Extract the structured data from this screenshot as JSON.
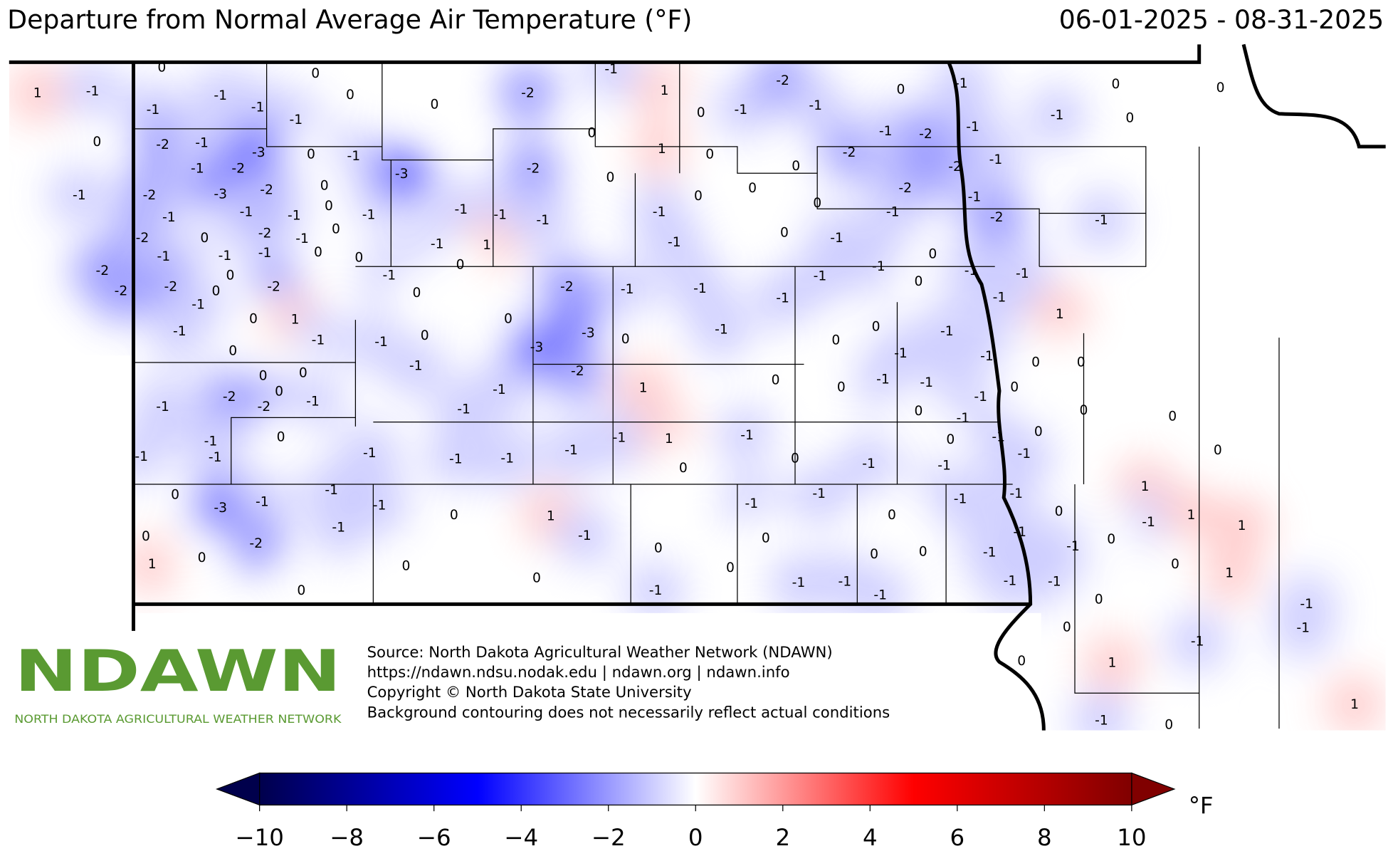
{
  "title": "Departure from Normal Average Air Temperature ($^\\circ$F)",
  "date_range": "06-01-2025 - 08-31-2025",
  "source_lines": [
    "Source: North Dakota Agricultural Weather Network (NDAWN)",
    "https://ndawn.ndsu.nodak.edu | ndawn.org | ndawn.info",
    "Copyright © North Dakota State University",
    "Background contouring does not necessarily reflect actual conditions"
  ],
  "logo": {
    "name": "NDAWN",
    "tagline": "NORTH DAKOTA AGRICULTURAL WEATHER NETWORK"
  },
  "station_values": [
    1,
    -1,
    0,
    0,
    -1,
    -1,
    -1,
    0,
    -1,
    0,
    0,
    -2,
    -1,
    1,
    0,
    -1,
    -2,
    -1,
    0,
    -1,
    0,
    -1,
    0,
    0,
    -2,
    -1,
    -1,
    -2,
    -3,
    0,
    -1,
    -3,
    0,
    -2,
    -3,
    -2,
    -1,
    0,
    1,
    0,
    -2,
    0,
    0,
    0,
    -2,
    -1,
    -2,
    -1,
    -2,
    -1,
    -2,
    -1,
    -1,
    -1,
    -1,
    0,
    -1,
    -1,
    -1,
    -1,
    0,
    -1,
    0,
    -1,
    -2,
    -1,
    -2,
    0,
    -2,
    -1,
    0,
    -1,
    -1,
    -1,
    0,
    0,
    -1,
    1,
    0,
    -1,
    0,
    -1,
    -2,
    -2,
    -2,
    0,
    0,
    -2,
    -1,
    -1,
    0,
    -2,
    -1,
    -1,
    -1,
    -1,
    -1,
    0,
    0,
    -1,
    -1,
    -1,
    -1,
    0,
    1,
    -1,
    0,
    -1,
    0,
    0,
    -3,
    -3,
    0,
    -1,
    0,
    0,
    -1,
    -1,
    -1,
    1,
    0,
    0,
    0,
    0,
    0,
    -1,
    -2,
    -1,
    1,
    0,
    0,
    -1,
    -1,
    -1,
    0,
    -1,
    -2,
    -2,
    -1,
    -1,
    0,
    -1,
    0,
    0,
    -1,
    0,
    -1,
    -1,
    -1,
    -1,
    -1,
    -1,
    -1,
    1,
    -1,
    0,
    0,
    -1,
    -1,
    0,
    -1,
    0,
    -1,
    0,
    0,
    -3,
    -1,
    -1,
    -1,
    0,
    1,
    -1,
    -1,
    0,
    -1,
    -1,
    0,
    1,
    -1,
    1,
    1,
    0,
    -1,
    -2,
    -1,
    0,
    -1,
    -1,
    0,
    1,
    1,
    0,
    0,
    0,
    0,
    0,
    0,
    -1,
    0,
    0,
    0,
    -1,
    -1,
    -1,
    -1,
    -1,
    -1,
    0,
    -1,
    0,
    -1,
    -1,
    0,
    1,
    -1,
    0,
    1
  ],
  "colorbar": {
    "lim": [
      -10,
      10
    ],
    "ticks": [
      {
        "value": -10,
        "label": "−10"
      },
      {
        "value": -8,
        "label": "−8"
      },
      {
        "value": -6,
        "label": "−6"
      },
      {
        "value": -4,
        "label": "−4"
      },
      {
        "value": -2,
        "label": "−2"
      },
      0,
      2,
      4,
      6,
      8,
      10
    ],
    "unit": "$^\\circ$F",
    "colormap": [
      "#00004c",
      "#0000ff",
      "#ffffff",
      "#ff0000",
      "#800000"
    ]
  }
}
